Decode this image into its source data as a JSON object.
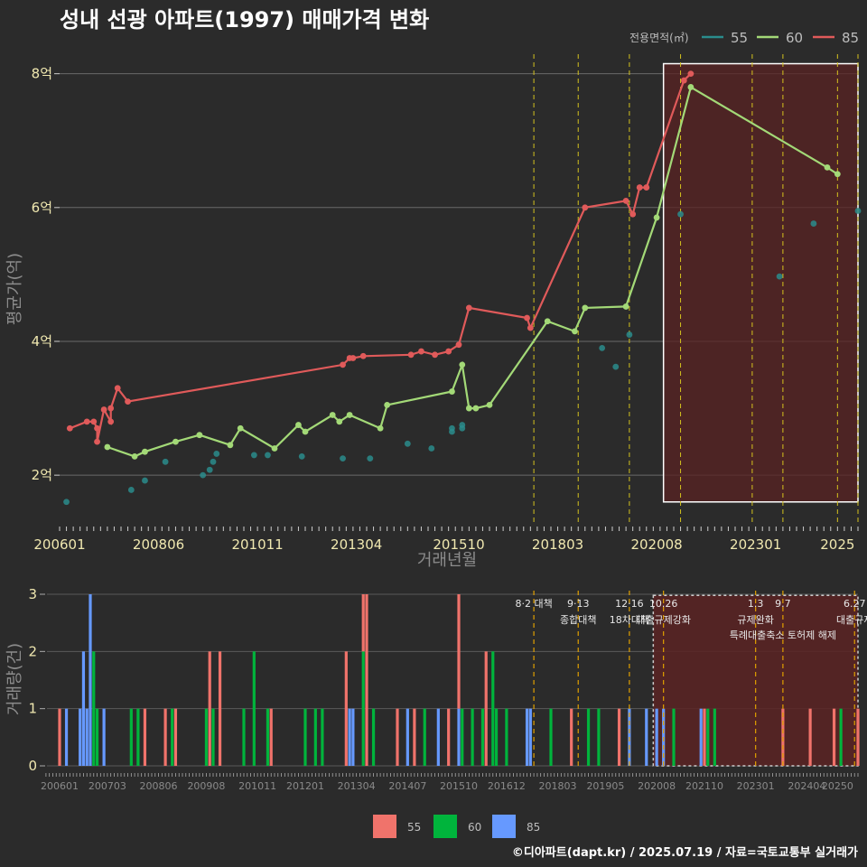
{
  "chart_data": [
    {
      "type": "line",
      "title": "성내 선광 아파트(1997) 매매가격 변화",
      "xlabel": "거래년월",
      "ylabel": "평균가(억)",
      "x_ticks": [
        "200601",
        "200806",
        "201011",
        "201304",
        "201510",
        "201803",
        "202008",
        "202301",
        "2025"
      ],
      "y_ticks": [
        {
          "value": 2,
          "label": "2억"
        },
        {
          "value": 4,
          "label": "4억"
        },
        {
          "value": 6,
          "label": "6억"
        },
        {
          "value": 8,
          "label": "8억"
        }
      ],
      "xlim": [
        "2006-01",
        "2025-07"
      ],
      "ylim": [
        1.3,
        8.4
      ],
      "grid": true,
      "legend": {
        "title": "전용면적(㎡)",
        "position": "top-right"
      },
      "colors": {
        "55": "#2a8c8c",
        "60": "#a3d977",
        "85": "#e05a5a"
      },
      "series": [
        {
          "name": "55",
          "style": "points",
          "points": [
            [
              "2006-03",
              1.6
            ],
            [
              "2007-10",
              1.78
            ],
            [
              "2008-02",
              1.92
            ],
            [
              "2008-08",
              2.2
            ],
            [
              "2009-07",
              2.0
            ],
            [
              "2009-09",
              2.08
            ],
            [
              "2009-10",
              2.2
            ],
            [
              "2009-11",
              2.32
            ],
            [
              "2010-10",
              2.3
            ],
            [
              "2011-02",
              2.3
            ],
            [
              "2011-12",
              2.28
            ],
            [
              "2012-12",
              2.25
            ],
            [
              "2013-08",
              2.25
            ],
            [
              "2014-07",
              2.47
            ],
            [
              "2015-02",
              2.4
            ],
            [
              "2015-08",
              2.65
            ],
            [
              "2015-08",
              2.7
            ],
            [
              "2015-11",
              2.7
            ],
            [
              "2015-11",
              2.75
            ],
            [
              "2019-04",
              3.9
            ],
            [
              "2019-08",
              3.62
            ],
            [
              "2019-12",
              4.1
            ],
            [
              "2021-03",
              5.9
            ],
            [
              "2023-08",
              4.97
            ],
            [
              "2024-06",
              5.76
            ],
            [
              "2025-07",
              5.95
            ]
          ]
        },
        {
          "name": "60",
          "style": "line",
          "points": [
            [
              "2007-03",
              2.42
            ],
            [
              "2007-11",
              2.28
            ],
            [
              "2008-02",
              2.35
            ],
            [
              "2008-11",
              2.5
            ],
            [
              "2009-06",
              2.6
            ],
            [
              "2010-03",
              2.45
            ],
            [
              "2010-06",
              2.7
            ],
            [
              "2011-04",
              2.4
            ],
            [
              "2011-11",
              2.75
            ],
            [
              "2012-01",
              2.65
            ],
            [
              "2012-09",
              2.9
            ],
            [
              "2012-11",
              2.8
            ],
            [
              "2013-02",
              2.9
            ],
            [
              "2013-11",
              2.7
            ],
            [
              "2014-01",
              3.05
            ],
            [
              "2015-08",
              3.25
            ],
            [
              "2015-11",
              3.65
            ],
            [
              "2016-01",
              3.0
            ],
            [
              "2016-03",
              3.0
            ],
            [
              "2016-07",
              3.05
            ],
            [
              "2017-12",
              4.3
            ],
            [
              "2018-08",
              4.15
            ],
            [
              "2018-11",
              4.5
            ],
            [
              "2019-11",
              4.52
            ],
            [
              "2020-08",
              5.85
            ],
            [
              "2021-06",
              7.8
            ],
            [
              "2024-10",
              6.6
            ],
            [
              "2025-01",
              6.5
            ]
          ]
        },
        {
          "name": "85",
          "style": "line",
          "points": [
            [
              "2006-04",
              2.7
            ],
            [
              "2006-09",
              2.8
            ],
            [
              "2006-11",
              2.8
            ],
            [
              "2006-12",
              2.7
            ],
            [
              "2006-12",
              2.5
            ],
            [
              "2007-02",
              2.98
            ],
            [
              "2007-04",
              2.8
            ],
            [
              "2007-04",
              3.0
            ],
            [
              "2007-06",
              3.3
            ],
            [
              "2007-09",
              3.1
            ],
            [
              "2012-12",
              3.65
            ],
            [
              "2013-02",
              3.75
            ],
            [
              "2013-03",
              3.75
            ],
            [
              "2013-06",
              3.78
            ],
            [
              "2014-08",
              3.8
            ],
            [
              "2014-11",
              3.85
            ],
            [
              "2015-03",
              3.8
            ],
            [
              "2015-07",
              3.85
            ],
            [
              "2015-10",
              3.95
            ],
            [
              "2016-01",
              4.5
            ],
            [
              "2017-06",
              4.35
            ],
            [
              "2017-07",
              4.2
            ],
            [
              "2018-11",
              6.0
            ],
            [
              "2019-11",
              6.1
            ],
            [
              "2020-01",
              5.9
            ],
            [
              "2020-03",
              6.3
            ],
            [
              "2020-05",
              6.3
            ],
            [
              "2021-04",
              7.9
            ],
            [
              "2021-06",
              8.0
            ]
          ]
        }
      ]
    },
    {
      "type": "bar",
      "ylabel": "거래량(건)",
      "x_ticks": [
        "200601",
        "200703",
        "200806",
        "200908",
        "201011",
        "201201",
        "201304",
        "201407",
        "201510",
        "201612",
        "201803",
        "201905",
        "202008",
        "202110",
        "202301",
        "202404",
        "20250"
      ],
      "y_ticks": [
        0,
        1,
        2,
        3
      ],
      "ylim": [
        0,
        3
      ],
      "legend": {
        "position": "bottom",
        "entries": [
          {
            "name": "55",
            "color": "#f0736b"
          },
          {
            "name": "60",
            "color": "#00b43c"
          },
          {
            "name": "85",
            "color": "#6699ff"
          }
        ]
      },
      "stacked": true,
      "bars": [
        {
          "month": "2006-01",
          "s55": 1,
          "s60": 0,
          "s85": 0
        },
        {
          "month": "2006-03",
          "s55": 0,
          "s60": 0,
          "s85": 1
        },
        {
          "month": "2006-07",
          "s55": 0,
          "s60": 0,
          "s85": 1
        },
        {
          "month": "2006-08",
          "s55": 0,
          "s60": 0,
          "s85": 2
        },
        {
          "month": "2006-09",
          "s55": 0,
          "s60": 0,
          "s85": 1
        },
        {
          "month": "2006-10",
          "s55": 0,
          "s60": 0,
          "s85": 3
        },
        {
          "month": "2006-11",
          "s55": 0,
          "s60": 2,
          "s85": 0
        },
        {
          "month": "2006-12",
          "s55": 0,
          "s60": 1,
          "s85": 0
        },
        {
          "month": "2007-02",
          "s55": 0,
          "s60": 0,
          "s85": 1
        },
        {
          "month": "2007-10",
          "s55": 0,
          "s60": 1,
          "s85": 0
        },
        {
          "month": "2007-12",
          "s55": 0,
          "s60": 1,
          "s85": 0
        },
        {
          "month": "2008-02",
          "s55": 1,
          "s60": 0,
          "s85": 0
        },
        {
          "month": "2008-08",
          "s55": 1,
          "s60": 0,
          "s85": 0
        },
        {
          "month": "2008-10",
          "s55": 0,
          "s60": 1,
          "s85": 0
        },
        {
          "month": "2008-11",
          "s55": 1,
          "s60": 0,
          "s85": 0
        },
        {
          "month": "2009-08",
          "s55": 0,
          "s60": 1,
          "s85": 0
        },
        {
          "month": "2009-09",
          "s55": 2,
          "s60": 0,
          "s85": 0
        },
        {
          "month": "2009-10",
          "s55": 0,
          "s60": 1,
          "s85": 0
        },
        {
          "month": "2009-12",
          "s55": 2,
          "s60": 0,
          "s85": 0
        },
        {
          "month": "2010-07",
          "s55": 0,
          "s60": 1,
          "s85": 0
        },
        {
          "month": "2010-10",
          "s55": 0,
          "s60": 2,
          "s85": 0
        },
        {
          "month": "2011-02",
          "s55": 0,
          "s60": 1,
          "s85": 0
        },
        {
          "month": "2011-03",
          "s55": 1,
          "s60": 0,
          "s85": 0
        },
        {
          "month": "2012-01",
          "s55": 0,
          "s60": 1,
          "s85": 0
        },
        {
          "month": "2012-04",
          "s55": 0,
          "s60": 1,
          "s85": 0
        },
        {
          "month": "2012-06",
          "s55": 0,
          "s60": 1,
          "s85": 0
        },
        {
          "month": "2013-01",
          "s55": 2,
          "s60": 0,
          "s85": 0
        },
        {
          "month": "2013-02",
          "s55": 0,
          "s60": 0,
          "s85": 1
        },
        {
          "month": "2013-03",
          "s55": 0,
          "s60": 0,
          "s85": 1
        },
        {
          "month": "2013-06",
          "s55": 1,
          "s60": 2,
          "s85": 0
        },
        {
          "month": "2013-07",
          "s55": 3,
          "s60": 0,
          "s85": 0
        },
        {
          "month": "2013-09",
          "s55": 0,
          "s60": 1,
          "s85": 0
        },
        {
          "month": "2014-04",
          "s55": 1,
          "s60": 0,
          "s85": 0
        },
        {
          "month": "2014-07",
          "s55": 0,
          "s60": 0,
          "s85": 1
        },
        {
          "month": "2014-09",
          "s55": 1,
          "s60": 0,
          "s85": 0
        },
        {
          "month": "2014-12",
          "s55": 0,
          "s60": 1,
          "s85": 0
        },
        {
          "month": "2015-04",
          "s55": 0,
          "s60": 0,
          "s85": 1
        },
        {
          "month": "2015-07",
          "s55": 1,
          "s60": 0,
          "s85": 0
        },
        {
          "month": "2015-10",
          "s55": 2,
          "s60": 0,
          "s85": 1
        },
        {
          "month": "2015-11",
          "s55": 0,
          "s60": 1,
          "s85": 0
        },
        {
          "month": "2016-02",
          "s55": 0,
          "s60": 1,
          "s85": 0
        },
        {
          "month": "2016-05",
          "s55": 0,
          "s60": 1,
          "s85": 0
        },
        {
          "month": "2016-06",
          "s55": 2,
          "s60": 0,
          "s85": 0
        },
        {
          "month": "2016-08",
          "s55": 0,
          "s60": 2,
          "s85": 0
        },
        {
          "month": "2016-09",
          "s55": 0,
          "s60": 1,
          "s85": 0
        },
        {
          "month": "2016-12",
          "s55": 0,
          "s60": 1,
          "s85": 0
        },
        {
          "month": "2017-06",
          "s55": 0,
          "s60": 0,
          "s85": 1
        },
        {
          "month": "2017-07",
          "s55": 0,
          "s60": 0,
          "s85": 1
        },
        {
          "month": "2018-01",
          "s55": 0,
          "s60": 1,
          "s85": 0
        },
        {
          "month": "2018-07",
          "s55": 1,
          "s60": 0,
          "s85": 0
        },
        {
          "month": "2018-12",
          "s55": 0,
          "s60": 1,
          "s85": 0
        },
        {
          "month": "2019-03",
          "s55": 0,
          "s60": 1,
          "s85": 0
        },
        {
          "month": "2019-09",
          "s55": 1,
          "s60": 0,
          "s85": 0
        },
        {
          "month": "2019-12",
          "s55": 0,
          "s60": 0,
          "s85": 1
        },
        {
          "month": "2020-05",
          "s55": 0,
          "s60": 0,
          "s85": 1
        },
        {
          "month": "2020-08",
          "s55": 0,
          "s60": 0,
          "s85": 1
        },
        {
          "month": "2020-10",
          "s55": 0,
          "s60": 0,
          "s85": 1
        },
        {
          "month": "2021-01",
          "s55": 0,
          "s60": 1,
          "s85": 0
        },
        {
          "month": "2021-09",
          "s55": 0,
          "s60": 0,
          "s85": 1
        },
        {
          "month": "2021-10",
          "s55": 1,
          "s60": 0,
          "s85": 0
        },
        {
          "month": "2021-11",
          "s55": 0,
          "s60": 1,
          "s85": 0
        },
        {
          "month": "2022-01",
          "s55": 0,
          "s60": 1,
          "s85": 0
        },
        {
          "month": "2023-09",
          "s55": 1,
          "s60": 0,
          "s85": 0
        },
        {
          "month": "2024-05",
          "s55": 1,
          "s60": 0,
          "s85": 0
        },
        {
          "month": "2024-12",
          "s55": 1,
          "s60": 0,
          "s85": 0
        },
        {
          "month": "2025-02",
          "s55": 0,
          "s60": 1,
          "s85": 0
        },
        {
          "month": "2025-07",
          "s55": 1,
          "s60": 0,
          "s85": 0
        }
      ],
      "annotations": [
        {
          "date": "2017-08",
          "line1": "8·2 대책",
          "line2": ""
        },
        {
          "date": "2018-09",
          "line1": "9·13",
          "line2": "종합대책"
        },
        {
          "date": "2019-12",
          "line1": "12·16",
          "line2": "18차대책"
        },
        {
          "date": "2020-10",
          "line1": "10.26",
          "line2": "대출규제강화"
        },
        {
          "date": "2023-01",
          "line1": "1.3",
          "line2": "규제완화"
        },
        {
          "date": "2023-09",
          "line1": "9.7",
          "line2": "특례대출축소 토허제 해제"
        },
        {
          "date": "2025-06",
          "line1": "6.27",
          "line2": "대출규제"
        }
      ]
    }
  ],
  "footer": "©디아파트(dapt.kr) / 2025.07.19 / 자료=국토교통부 실거래가"
}
